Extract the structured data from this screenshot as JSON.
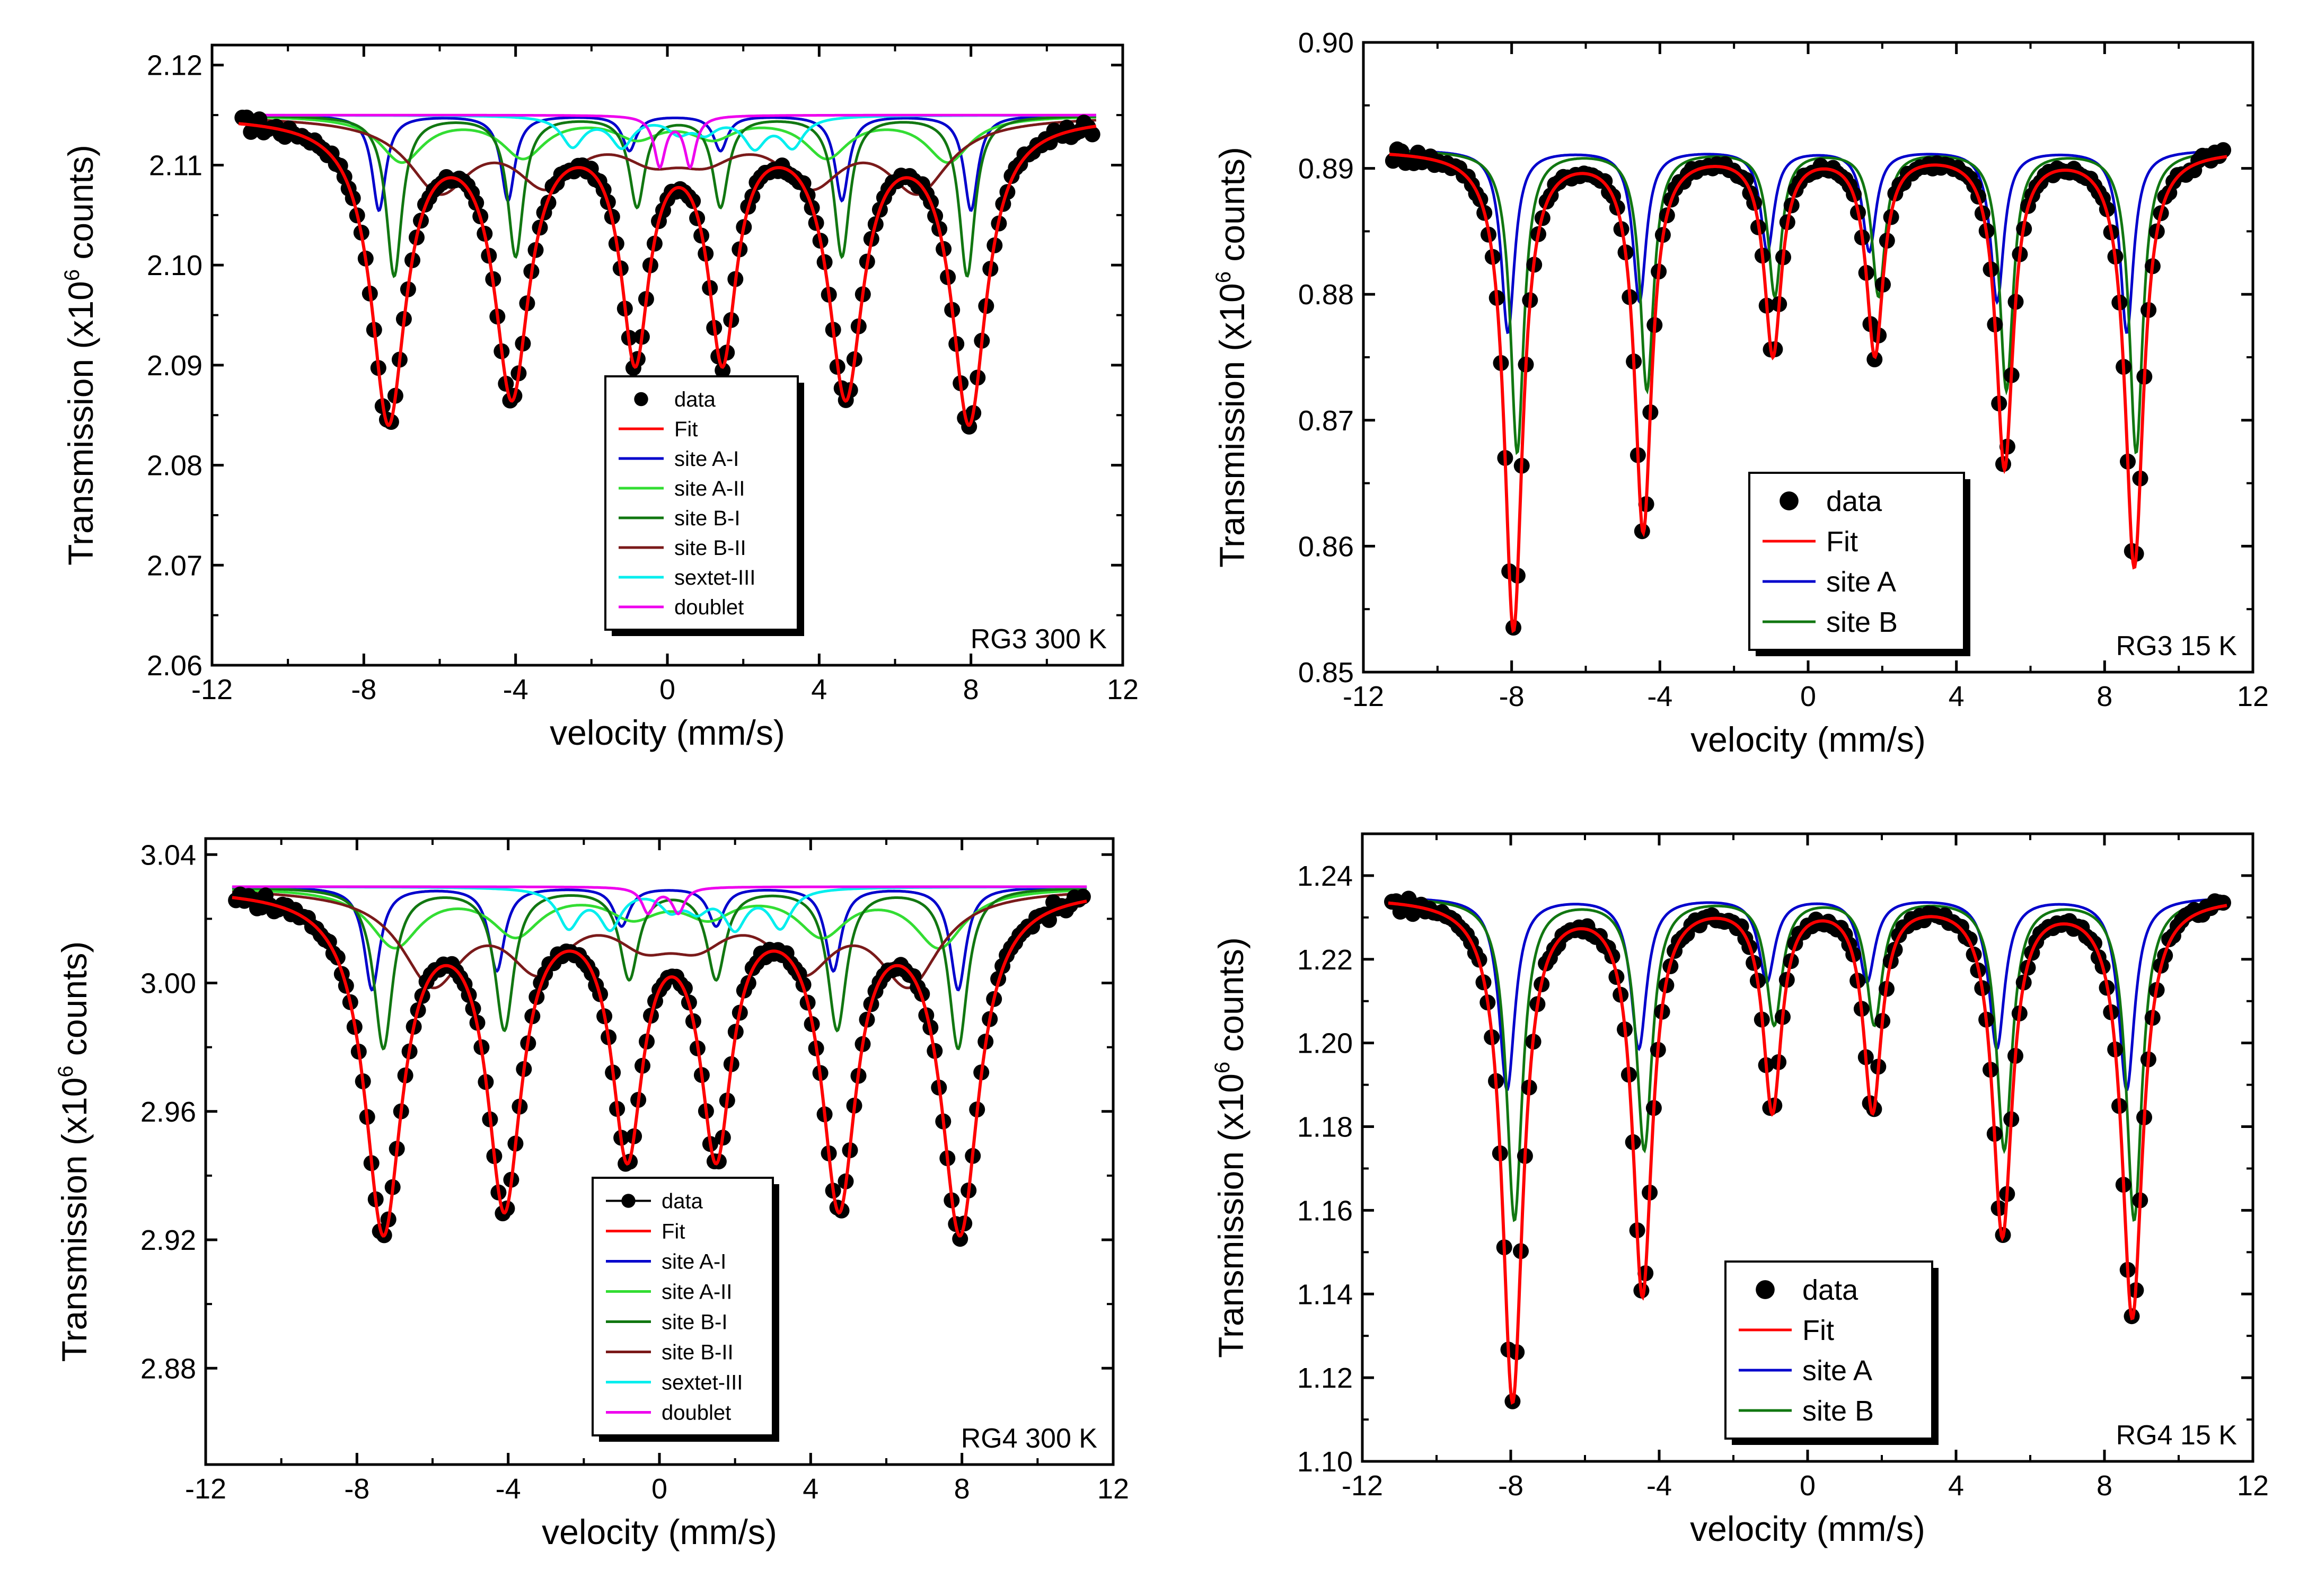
{
  "chart_data": [
    {
      "type": "line",
      "title": "RG3 300 K",
      "panel_label": "RG3 300 K",
      "xlabel": "velocity (mm/s)",
      "ylabel": "Transmission (x10^6 counts)",
      "ylabel_main": "Transmission (x10",
      "ylabel_sup": "6",
      "ylabel_end": " counts)",
      "xlim": [
        -12,
        12
      ],
      "ylim": [
        2.06,
        2.122
      ],
      "xticks": [
        -12,
        -8,
        -4,
        0,
        4,
        8,
        12
      ],
      "xtick_labels": [
        "-12",
        "-8",
        "-4",
        "0",
        "4",
        "8",
        "12"
      ],
      "yticks": [
        2.06,
        2.07,
        2.08,
        2.09,
        2.1,
        2.11,
        2.12
      ],
      "ytick_labels": [
        "2.06",
        "2.07",
        "2.08",
        "2.09",
        "2.10",
        "2.11",
        "2.12"
      ],
      "baseline": 2.115,
      "legend": {
        "position": "center-bottom",
        "entries": [
          {
            "label": "data",
            "marker": "dot",
            "color": "#000000"
          },
          {
            "label": "Fit",
            "color": "#ff0000"
          },
          {
            "label": "site A-I",
            "color": "#0000cc"
          },
          {
            "label": "site A-II",
            "color": "#33dd33"
          },
          {
            "label": "site B-I",
            "color": "#117711"
          },
          {
            "label": "site B-II",
            "color": "#7a1a1a"
          },
          {
            "label": "sextet-III",
            "color": "#00eeee"
          },
          {
            "label": "doublet",
            "color": "#ee00ee"
          }
        ]
      },
      "series": [
        {
          "name": "site A-I",
          "color": "#0000cc",
          "peaks": [
            [
              -7.6,
              0.0095,
              0.22
            ],
            [
              -4.2,
              0.0085,
              0.22
            ],
            [
              -1.0,
              0.0035,
              0.22
            ],
            [
              1.4,
              0.0035,
              0.22
            ],
            [
              4.6,
              0.0085,
              0.22
            ],
            [
              8.0,
              0.0095,
              0.22
            ]
          ]
        },
        {
          "name": "site A-II",
          "color": "#33dd33",
          "peaks": [
            [
              -7.0,
              0.0045,
              0.7
            ],
            [
              -3.8,
              0.004,
              0.7
            ],
            [
              -0.8,
              0.002,
              0.7
            ],
            [
              1.2,
              0.002,
              0.7
            ],
            [
              4.2,
              0.004,
              0.7
            ],
            [
              7.4,
              0.0045,
              0.7
            ]
          ]
        },
        {
          "name": "site B-I",
          "color": "#117711",
          "peaks": [
            [
              -7.2,
              0.016,
              0.25
            ],
            [
              -4.0,
              0.014,
              0.25
            ],
            [
              -0.8,
              0.009,
              0.25
            ],
            [
              1.4,
              0.009,
              0.25
            ],
            [
              4.6,
              0.014,
              0.25
            ],
            [
              7.9,
              0.016,
              0.25
            ]
          ]
        },
        {
          "name": "site B-II",
          "color": "#7a1a1a",
          "peaks": [
            [
              -6.0,
              0.007,
              1.0
            ],
            [
              -3.2,
              0.006,
              1.0
            ],
            [
              -0.4,
              0.003,
              1.0
            ],
            [
              1.0,
              0.003,
              1.0
            ],
            [
              3.8,
              0.006,
              1.0
            ],
            [
              6.6,
              0.007,
              1.0
            ]
          ]
        },
        {
          "name": "sextet-III",
          "color": "#00eeee",
          "peaks": [
            [
              -2.5,
              0.003,
              0.35
            ],
            [
              -1.2,
              0.003,
              0.35
            ],
            [
              0.3,
              0.0015,
              0.35
            ],
            [
              1.0,
              0.0015,
              0.35
            ],
            [
              2.3,
              0.003,
              0.35
            ],
            [
              3.3,
              0.003,
              0.35
            ]
          ]
        },
        {
          "name": "doublet",
          "color": "#ee00ee",
          "peaks": [
            [
              -0.2,
              0.005,
              0.18
            ],
            [
              0.6,
              0.005,
              0.18
            ]
          ]
        }
      ],
      "fit": {
        "name": "Fit",
        "color": "#ff0000",
        "peaks": [
          [
            -7.35,
            0.03,
            0.55
          ],
          [
            -4.1,
            0.027,
            0.55
          ],
          [
            -0.85,
            0.023,
            0.45
          ],
          [
            1.45,
            0.023,
            0.45
          ],
          [
            4.7,
            0.027,
            0.55
          ],
          [
            7.95,
            0.03,
            0.55
          ]
        ]
      },
      "data_dip_extra": 0.0012
    },
    {
      "type": "line",
      "title": "RG3 15 K",
      "panel_label": "RG3 15 K",
      "xlabel": "velocity (mm/s)",
      "ylabel": "Transmission (x10^6 counts)",
      "ylabel_main": "Transmission (x10",
      "ylabel_sup": "6",
      "ylabel_end": " counts)",
      "xlim": [
        -12,
        12
      ],
      "ylim": [
        0.85,
        0.9
      ],
      "xticks": [
        -12,
        -8,
        -4,
        0,
        4,
        8,
        12
      ],
      "xtick_labels": [
        "-12",
        "-8",
        "-4",
        "0",
        "4",
        "8",
        "12"
      ],
      "yticks": [
        0.85,
        0.86,
        0.87,
        0.88,
        0.89,
        0.9
      ],
      "ytick_labels": [
        "0.85",
        "0.86",
        "0.87",
        "0.88",
        "0.89",
        "0.90"
      ],
      "baseline": 0.8915,
      "legend": {
        "position": "lower-right",
        "entries": [
          {
            "label": "data",
            "marker": "dot",
            "color": "#000000"
          },
          {
            "label": "Fit",
            "color": "#ff0000"
          },
          {
            "label": "site A",
            "color": "#0000cc"
          },
          {
            "label": "site B",
            "color": "#117711"
          }
        ]
      },
      "series": [
        {
          "name": "site A",
          "color": "#0000cc",
          "peaks": [
            [
              -8.1,
              0.0145,
              0.22
            ],
            [
              -4.55,
              0.012,
              0.22
            ],
            [
              -1.1,
              0.008,
              0.22
            ],
            [
              1.65,
              0.008,
              0.22
            ],
            [
              5.1,
              0.012,
              0.22
            ],
            [
              8.6,
              0.0145,
              0.22
            ]
          ]
        },
        {
          "name": "site B",
          "color": "#117711",
          "peaks": [
            [
              -7.85,
              0.024,
              0.22
            ],
            [
              -4.35,
              0.019,
              0.22
            ],
            [
              -0.9,
              0.0115,
              0.22
            ],
            [
              1.9,
              0.0115,
              0.22
            ],
            [
              5.35,
              0.019,
              0.22
            ],
            [
              8.85,
              0.024,
              0.22
            ]
          ]
        }
      ],
      "fit": {
        "name": "Fit",
        "color": "#ff0000",
        "peaks": [
          [
            -7.95,
            0.038,
            0.3
          ],
          [
            -4.45,
            0.03,
            0.28
          ],
          [
            -0.95,
            0.016,
            0.28
          ],
          [
            1.8,
            0.016,
            0.28
          ],
          [
            5.3,
            0.025,
            0.28
          ],
          [
            8.8,
            0.033,
            0.3
          ]
        ]
      },
      "data_dip_extra": 0.001
    },
    {
      "type": "line",
      "title": "RG4 300 K",
      "panel_label": "RG4 300 K",
      "xlabel": "velocity (mm/s)",
      "ylabel": "Transmission (x10^6 counts)",
      "ylabel_main": "Transmission (x10",
      "ylabel_sup": "6",
      "ylabel_end": " counts)",
      "xlim": [
        -12,
        12
      ],
      "ylim": [
        2.85,
        3.045
      ],
      "xticks": [
        -12,
        -8,
        -4,
        0,
        4,
        8,
        12
      ],
      "xtick_labels": [
        "-12",
        "-8",
        "-4",
        "0",
        "4",
        "8",
        "12"
      ],
      "yticks": [
        2.88,
        2.92,
        2.96,
        3.0,
        3.04
      ],
      "ytick_labels": [
        "2.88",
        "2.92",
        "2.96",
        "3.00",
        "3.04"
      ],
      "baseline": 3.03,
      "legend": {
        "position": "center-bottom",
        "entries": [
          {
            "label": "data",
            "marker": "line-dot",
            "color": "#000000"
          },
          {
            "label": "Fit",
            "color": "#ff0000"
          },
          {
            "label": "site A-I",
            "color": "#0000cc"
          },
          {
            "label": "site A-II",
            "color": "#33dd33"
          },
          {
            "label": "site B-I",
            "color": "#117711"
          },
          {
            "label": "site B-II",
            "color": "#7a1a1a"
          },
          {
            "label": "sextet-III",
            "color": "#00eeee"
          },
          {
            "label": "doublet",
            "color": "#ee00ee"
          }
        ]
      },
      "series": [
        {
          "name": "site A-I",
          "color": "#0000cc",
          "peaks": [
            [
              -7.6,
              0.032,
              0.25
            ],
            [
              -4.3,
              0.026,
              0.25
            ],
            [
              -1.0,
              0.012,
              0.25
            ],
            [
              1.5,
              0.012,
              0.25
            ],
            [
              4.6,
              0.026,
              0.25
            ],
            [
              7.9,
              0.032,
              0.25
            ]
          ]
        },
        {
          "name": "site A-II",
          "color": "#33dd33",
          "peaks": [
            [
              -7.0,
              0.018,
              0.8
            ],
            [
              -3.8,
              0.014,
              0.8
            ],
            [
              -0.7,
              0.008,
              0.8
            ],
            [
              1.3,
              0.008,
              0.8
            ],
            [
              4.3,
              0.014,
              0.8
            ],
            [
              7.4,
              0.018,
              0.8
            ]
          ]
        },
        {
          "name": "site B-I",
          "color": "#117711",
          "peaks": [
            [
              -7.3,
              0.05,
              0.3
            ],
            [
              -4.1,
              0.044,
              0.3
            ],
            [
              -0.8,
              0.028,
              0.3
            ],
            [
              1.5,
              0.028,
              0.3
            ],
            [
              4.7,
              0.044,
              0.3
            ],
            [
              7.9,
              0.05,
              0.3
            ]
          ]
        },
        {
          "name": "site B-II",
          "color": "#7a1a1a",
          "peaks": [
            [
              -6.0,
              0.028,
              1.0
            ],
            [
              -3.2,
              0.022,
              1.0
            ],
            [
              -0.4,
              0.012,
              1.0
            ],
            [
              1.0,
              0.012,
              1.0
            ],
            [
              3.8,
              0.022,
              1.0
            ],
            [
              6.6,
              0.028,
              1.0
            ]
          ]
        },
        {
          "name": "sextet-III",
          "color": "#00eeee",
          "peaks": [
            [
              -2.4,
              0.012,
              0.35
            ],
            [
              -1.3,
              0.012,
              0.35
            ],
            [
              0.3,
              0.006,
              0.35
            ],
            [
              1.0,
              0.006,
              0.35
            ],
            [
              2.0,
              0.012,
              0.35
            ],
            [
              3.2,
              0.012,
              0.35
            ]
          ]
        },
        {
          "name": "doublet",
          "color": "#ee00ee",
          "peaks": [
            [
              -0.3,
              0.008,
              0.2
            ],
            [
              0.5,
              0.008,
              0.2
            ]
          ]
        }
      ],
      "fit": {
        "name": "Fit",
        "color": "#ff0000",
        "peaks": [
          [
            -7.3,
            0.105,
            0.6
          ],
          [
            -4.1,
            0.095,
            0.55
          ],
          [
            -0.85,
            0.078,
            0.5
          ],
          [
            1.5,
            0.078,
            0.5
          ],
          [
            4.75,
            0.095,
            0.55
          ],
          [
            7.95,
            0.105,
            0.6
          ]
        ]
      },
      "data_dip_extra": 0.004
    },
    {
      "type": "line",
      "title": "RG4 15 K",
      "panel_label": "RG4 15 K",
      "xlabel": "velocity (mm/s)",
      "ylabel": "Transmission (x10^6 counts)",
      "ylabel_main": "Transmission (x10",
      "ylabel_sup": "6",
      "ylabel_end": " counts)",
      "xlim": [
        -12,
        12
      ],
      "ylim": [
        1.1,
        1.25
      ],
      "xticks": [
        -12,
        -8,
        -4,
        0,
        4,
        8,
        12
      ],
      "xtick_labels": [
        "-12",
        "-8",
        "-4",
        "0",
        "4",
        "8",
        "12"
      ],
      "yticks": [
        1.1,
        1.12,
        1.14,
        1.16,
        1.18,
        1.2,
        1.22,
        1.24
      ],
      "ytick_labels": [
        "1.10",
        "1.12",
        "1.14",
        "1.16",
        "1.18",
        "1.20",
        "1.22",
        "1.24"
      ],
      "baseline": 1.235,
      "legend": {
        "position": "lower-right",
        "entries": [
          {
            "label": "data",
            "marker": "dot",
            "color": "#000000"
          },
          {
            "label": "Fit",
            "color": "#ff0000"
          },
          {
            "label": "site A",
            "color": "#0000cc"
          },
          {
            "label": "site B",
            "color": "#117711"
          }
        ]
      },
      "series": [
        {
          "name": "site A",
          "color": "#0000cc",
          "peaks": [
            [
              -8.1,
              0.046,
              0.26
            ],
            [
              -4.55,
              0.036,
              0.26
            ],
            [
              -1.1,
              0.02,
              0.26
            ],
            [
              1.6,
              0.02,
              0.26
            ],
            [
              5.1,
              0.036,
              0.26
            ],
            [
              8.6,
              0.046,
              0.26
            ]
          ]
        },
        {
          "name": "site B",
          "color": "#117711",
          "peaks": [
            [
              -7.9,
              0.077,
              0.26
            ],
            [
              -4.4,
              0.06,
              0.26
            ],
            [
              -0.9,
              0.03,
              0.26
            ],
            [
              1.8,
              0.03,
              0.26
            ],
            [
              5.3,
              0.06,
              0.26
            ],
            [
              8.8,
              0.077,
              0.26
            ]
          ]
        }
      ],
      "fit": {
        "name": "Fit",
        "color": "#ff0000",
        "peaks": [
          [
            -7.95,
            0.12,
            0.34
          ],
          [
            -4.45,
            0.094,
            0.32
          ],
          [
            -0.95,
            0.05,
            0.3
          ],
          [
            1.75,
            0.05,
            0.3
          ],
          [
            5.25,
            0.08,
            0.32
          ],
          [
            8.75,
            0.1,
            0.34
          ]
        ]
      },
      "data_dip_extra": 0.003
    }
  ]
}
